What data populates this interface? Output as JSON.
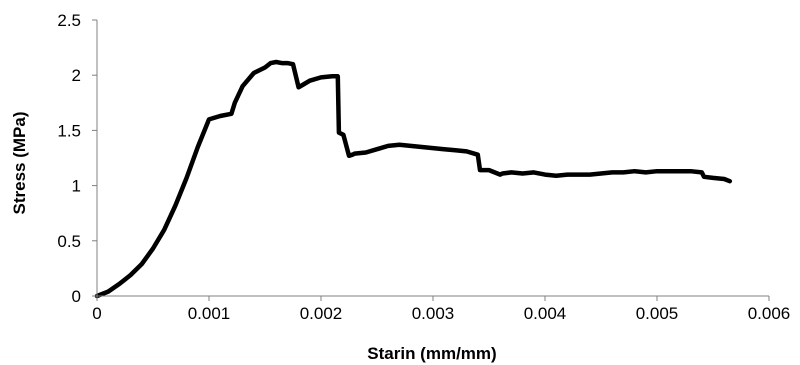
{
  "chart_data": {
    "type": "line",
    "title": "",
    "xlabel": "Starin (mm/mm)",
    "ylabel": "Stress (MPa)",
    "xlim": [
      0,
      0.006
    ],
    "ylim": [
      0,
      2.5
    ],
    "x_ticks": [
      "0",
      "0.001",
      "0.002",
      "0.003",
      "0.004",
      "0.005",
      "0.006"
    ],
    "y_ticks": [
      "0",
      "0.5",
      "1",
      "1.5",
      "2",
      "2.5"
    ],
    "grid": false,
    "legend": "none",
    "series": [
      {
        "color": "#000000",
        "x": [
          0,
          0.0001,
          0.0002,
          0.0003,
          0.0004,
          0.0005,
          0.0006,
          0.0007,
          0.0008,
          0.0009,
          0.001,
          0.0011,
          0.0012,
          0.00123,
          0.0013,
          0.0014,
          0.0015,
          0.00155,
          0.0016,
          0.00165,
          0.0017,
          0.00175,
          0.0018,
          0.00185,
          0.0019,
          0.002,
          0.0021,
          0.00215,
          0.00216,
          0.0022,
          0.00225,
          0.00228,
          0.0023,
          0.0024,
          0.0025,
          0.0026,
          0.0027,
          0.0028,
          0.0029,
          0.003,
          0.0031,
          0.0032,
          0.0033,
          0.0034,
          0.00342,
          0.00345,
          0.0035,
          0.0036,
          0.00362,
          0.0037,
          0.0038,
          0.0039,
          0.004,
          0.0041,
          0.0042,
          0.0043,
          0.0044,
          0.0045,
          0.0046,
          0.0047,
          0.0048,
          0.0049,
          0.005,
          0.0051,
          0.0052,
          0.0053,
          0.0054,
          0.00542,
          0.0055,
          0.0056,
          0.00565
        ],
        "y": [
          0,
          0.04,
          0.11,
          0.19,
          0.29,
          0.43,
          0.6,
          0.82,
          1.07,
          1.35,
          1.6,
          1.63,
          1.65,
          1.75,
          1.9,
          2.02,
          2.07,
          2.11,
          2.12,
          2.11,
          2.11,
          2.1,
          1.89,
          1.92,
          1.95,
          1.98,
          1.99,
          1.99,
          1.48,
          1.46,
          1.27,
          1.28,
          1.29,
          1.3,
          1.33,
          1.36,
          1.37,
          1.36,
          1.35,
          1.34,
          1.33,
          1.32,
          1.31,
          1.28,
          1.14,
          1.14,
          1.14,
          1.1,
          1.11,
          1.12,
          1.11,
          1.12,
          1.1,
          1.09,
          1.1,
          1.1,
          1.1,
          1.11,
          1.12,
          1.12,
          1.13,
          1.12,
          1.13,
          1.13,
          1.13,
          1.13,
          1.12,
          1.08,
          1.07,
          1.06,
          1.04
        ]
      }
    ]
  }
}
